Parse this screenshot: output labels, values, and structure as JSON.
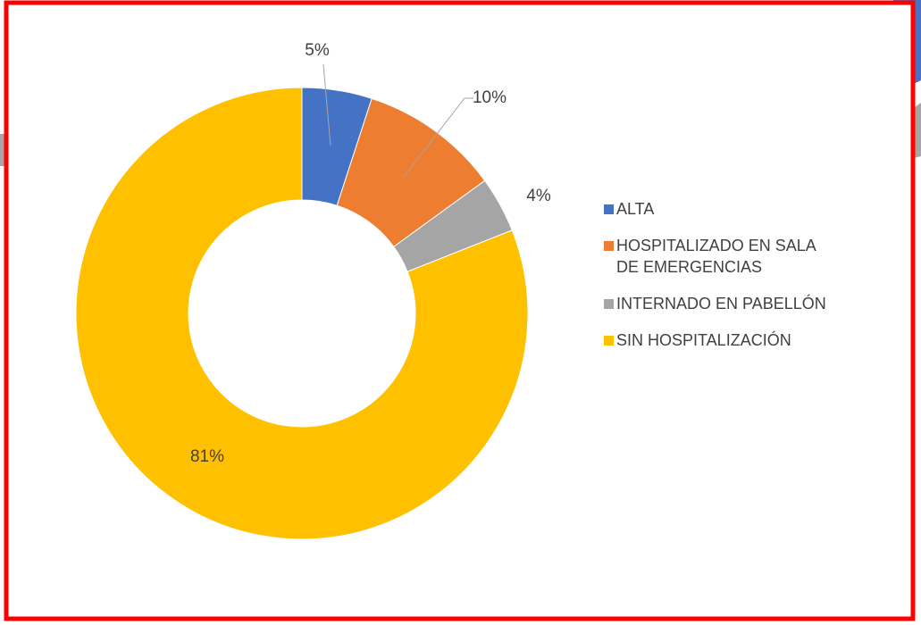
{
  "chart_data": {
    "type": "donut",
    "categories": [
      "ALTA",
      "HOSPITALIZADO EN SALA DE EMERGENCIAS",
      "INTERNADO EN PABELLÓN",
      "SIN HOSPITALIZACIÓN"
    ],
    "values": [
      5,
      10,
      4,
      81
    ],
    "value_labels": [
      "5%",
      "10%",
      "4%",
      "81%"
    ],
    "colors": [
      "#4472c4",
      "#ed7d31",
      "#a5a5a5",
      "#ffc000"
    ],
    "legend": "right"
  }
}
